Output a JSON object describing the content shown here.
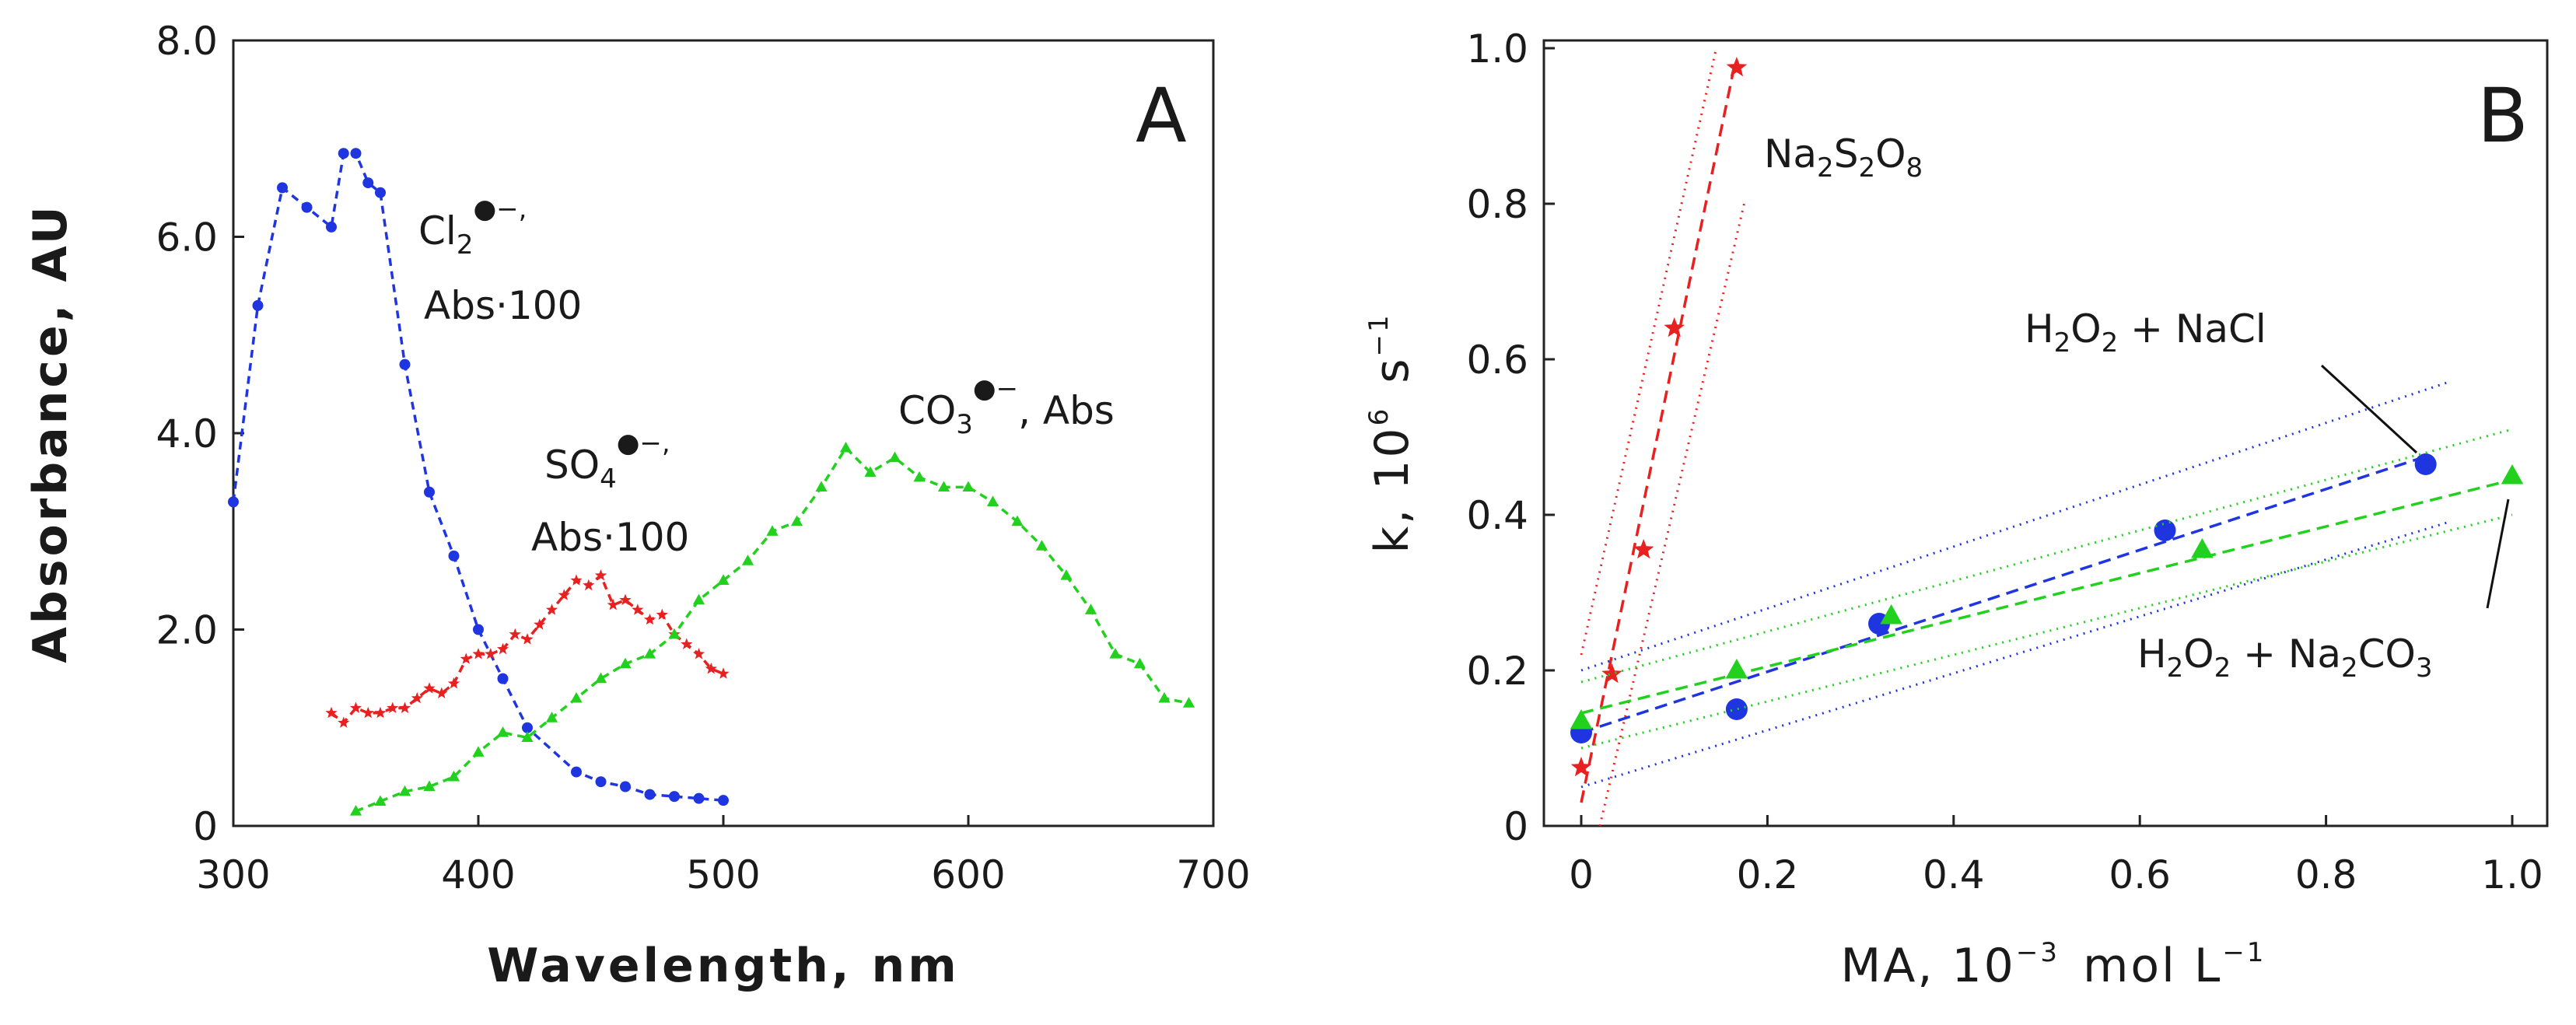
{
  "chart_data": [
    {
      "panel": "A",
      "type": "line",
      "xlabel": "Wavelength, nm",
      "ylabel": "Absorbance, AU",
      "xlim": [
        300,
        700
      ],
      "ylim": [
        0,
        8
      ],
      "xticks": [
        "300",
        "400",
        "500",
        "600",
        "700"
      ],
      "yticks": [
        "0",
        "2.0",
        "4.0",
        "6.0",
        "8.0"
      ],
      "series": [
        {
          "name": "Cl2 radical anion, Abs·100",
          "color": "#1f35e0",
          "marker": "circle",
          "x": [
            300,
            310,
            320,
            330,
            340,
            345,
            350,
            355,
            360,
            370,
            380,
            390,
            400,
            410,
            420,
            440,
            450,
            460,
            470,
            480,
            490,
            500
          ],
          "y": [
            3.3,
            5.3,
            6.5,
            6.3,
            6.1,
            6.85,
            6.85,
            6.55,
            6.45,
            4.7,
            3.4,
            2.75,
            2.0,
            1.5,
            1.0,
            0.55,
            0.45,
            0.4,
            0.32,
            0.3,
            0.28,
            0.26
          ]
        },
        {
          "name": "SO4 radical anion, Abs·100",
          "color": "#e82020",
          "marker": "star",
          "x": [
            340,
            345,
            350,
            355,
            360,
            365,
            370,
            375,
            380,
            385,
            390,
            395,
            400,
            405,
            410,
            415,
            420,
            425,
            430,
            435,
            440,
            445,
            450,
            455,
            460,
            465,
            470,
            475,
            480,
            485,
            490,
            495,
            500
          ],
          "y": [
            1.15,
            1.05,
            1.2,
            1.15,
            1.15,
            1.2,
            1.2,
            1.3,
            1.4,
            1.35,
            1.45,
            1.7,
            1.75,
            1.75,
            1.8,
            1.95,
            1.9,
            2.05,
            2.2,
            2.35,
            2.5,
            2.45,
            2.55,
            2.25,
            2.3,
            2.2,
            2.1,
            2.15,
            1.95,
            1.85,
            1.75,
            1.6,
            1.55
          ]
        },
        {
          "name": "CO3 radical anion, Abs",
          "color": "#22d11e",
          "marker": "triangle",
          "x": [
            350,
            360,
            370,
            380,
            390,
            400,
            410,
            420,
            430,
            440,
            450,
            460,
            470,
            480,
            490,
            500,
            510,
            520,
            530,
            540,
            550,
            560,
            570,
            580,
            590,
            600,
            610,
            620,
            630,
            640,
            650,
            660,
            670,
            680,
            690
          ],
          "y": [
            0.15,
            0.25,
            0.35,
            0.4,
            0.5,
            0.75,
            0.95,
            0.9,
            1.1,
            1.3,
            1.5,
            1.65,
            1.75,
            1.95,
            2.3,
            2.5,
            2.7,
            3.0,
            3.1,
            3.45,
            3.85,
            3.6,
            3.75,
            3.55,
            3.45,
            3.45,
            3.3,
            3.1,
            2.85,
            2.55,
            2.2,
            1.75,
            1.65,
            1.3,
            1.25
          ]
        }
      ]
    },
    {
      "panel": "B",
      "type": "scatter",
      "xlabel": "MA, 10⁻³ mol L⁻¹",
      "ylabel": "k, 10⁶ s⁻¹",
      "xlim": [
        0,
        1.0
      ],
      "ylim": [
        0,
        1.0
      ],
      "xticks": [
        "0",
        "0.2",
        "0.4",
        "0.6",
        "0.8",
        "1.0"
      ],
      "yticks": [
        "0",
        "0.2",
        "0.4",
        "0.6",
        "0.8",
        "1.0"
      ],
      "series": [
        {
          "name": "Na2S2O8",
          "color": "#e82020",
          "marker": "star",
          "x": [
            0,
            0.033,
            0.067,
            0.1,
            0.167
          ],
          "y": [
            0.075,
            0.195,
            0.355,
            0.64,
            0.975
          ],
          "fit": {
            "x0": 0,
            "y0": 0.03,
            "x1": 0.165,
            "y1": 0.98
          },
          "band_upper": {
            "x0": 0,
            "y0": 0.22,
            "x1": 0.145,
            "y1": 1.0
          },
          "band_lower": {
            "x0": 0.02,
            "y0": 0,
            "x1": 0.175,
            "y1": 0.8
          }
        },
        {
          "name": "H2O2 + NaCl",
          "color": "#1f35e0",
          "marker": "circle",
          "x": [
            0,
            0.167,
            0.32,
            0.627,
            0.907
          ],
          "y": [
            0.12,
            0.15,
            0.26,
            0.38,
            0.465
          ],
          "fit": {
            "x0": 0,
            "y0": 0.12,
            "x1": 0.907,
            "y1": 0.475
          },
          "band_upper": {
            "x0": 0,
            "y0": 0.2,
            "x1": 0.93,
            "y1": 0.57
          },
          "band_lower": {
            "x0": 0,
            "y0": 0.05,
            "x1": 0.93,
            "y1": 0.39
          }
        },
        {
          "name": "H2O2 + Na2CO3",
          "color": "#22d11e",
          "marker": "triangle",
          "x": [
            0,
            0.167,
            0.333,
            0.667,
            1.0
          ],
          "y": [
            0.135,
            0.2,
            0.27,
            0.355,
            0.45
          ],
          "fit": {
            "x0": 0,
            "y0": 0.145,
            "x1": 1.0,
            "y1": 0.445
          },
          "band_upper": {
            "x0": 0,
            "y0": 0.185,
            "x1": 1.0,
            "y1": 0.51
          },
          "band_lower": {
            "x0": 0,
            "y0": 0.1,
            "x1": 1.0,
            "y1": 0.4
          }
        }
      ]
    }
  ],
  "labels": {
    "panel_a": "A",
    "panel_b": "B",
    "a_xlabel": "Wavelength, nm",
    "a_ylabel": "Absorbance, AU",
    "b_x_ma": "MA, 10",
    "b_x_exp": "−3",
    "b_x_mol": "mol L",
    "b_x_exp2": "−1",
    "b_y_k": "k, 10",
    "b_y_exp": "6",
    "b_y_s": "s",
    "b_y_exp2": "−1",
    "cl2_formula": "Cl",
    "cl2_sub": "2",
    "cl2_charge": "●−,",
    "cl2_scale": "Abs·100",
    "so4_formula": "SO",
    "so4_sub": "4",
    "so4_charge": "●−,",
    "so4_scale": "Abs·100",
    "co3_formula": "CO",
    "co3_sub": "3",
    "co3_charge": "●−",
    "co3_scale": ", Abs",
    "naso_na": "Na",
    "naso_2a": "2",
    "naso_s": "S",
    "naso_2b": "2",
    "naso_o": "O",
    "naso_8": "8",
    "nacl_h": "H",
    "nacl_2a": "2",
    "nacl_o": "O",
    "nacl_2b": "2",
    "nacl_plus": " + NaCl",
    "naco_h": "H",
    "naco_2a": "2",
    "naco_o": "O",
    "naco_2b": "2",
    "naco_plus": " + Na",
    "naco_2c": "2",
    "naco_co": "CO",
    "naco_3": "3"
  }
}
